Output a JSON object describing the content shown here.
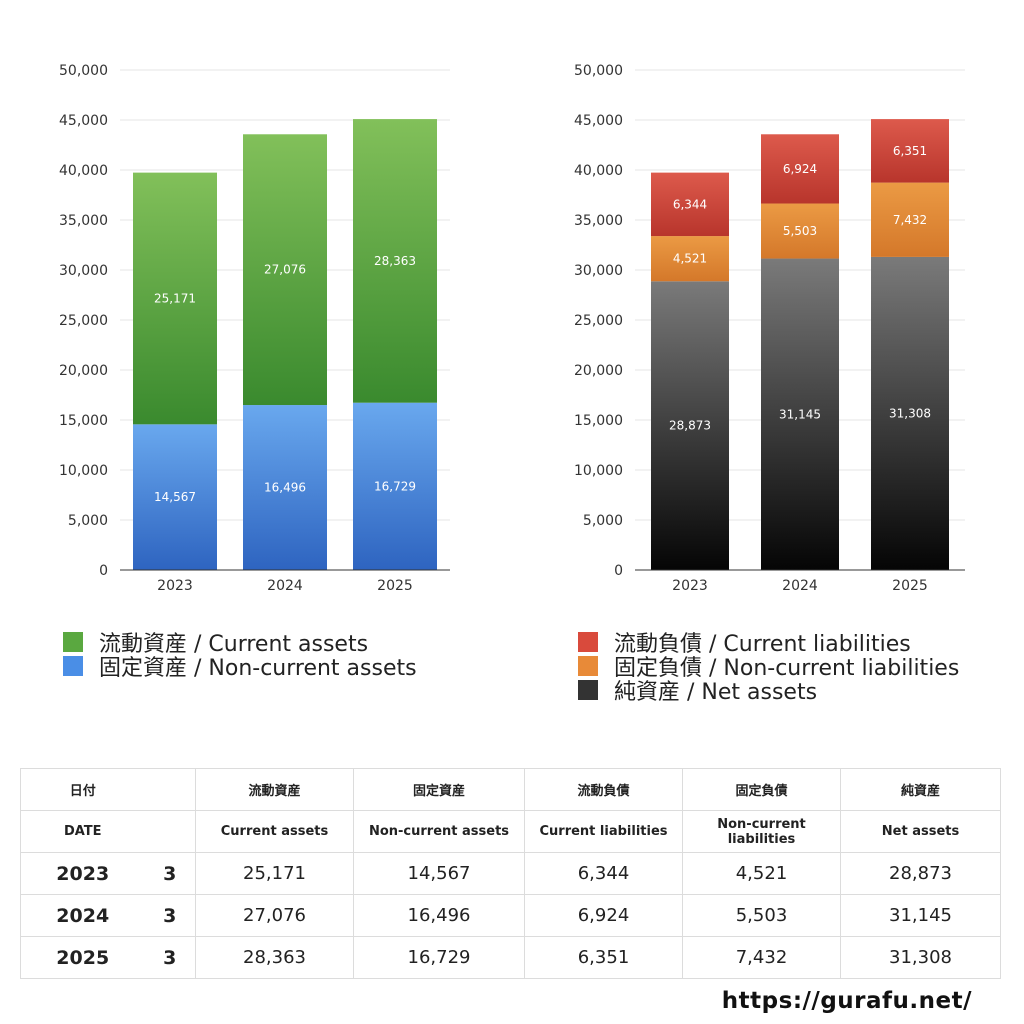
{
  "chart_data": [
    {
      "type": "bar",
      "stacked": true,
      "categories": [
        "2023",
        "2024",
        "2025"
      ],
      "ylim": [
        0,
        50000
      ],
      "ytick_step": 5000,
      "grid": true,
      "series": [
        {
          "name": "固定資産 / Non-current assets",
          "values": [
            14567,
            16496,
            16729
          ],
          "color_top": "#69a8ee",
          "color_bottom": "#2e64c0"
        },
        {
          "name": "流動資産 / Current assets",
          "values": [
            25171,
            27076,
            28363
          ],
          "color_top": "#82c05a",
          "color_bottom": "#3a8a2e"
        }
      ],
      "legend_order": [
        "流動資産 / Current assets",
        "固定資産 / Non-current assets"
      ],
      "legend_colors": [
        "#5aa840",
        "#4a8ee6"
      ]
    },
    {
      "type": "bar",
      "stacked": true,
      "categories": [
        "2023",
        "2024",
        "2025"
      ],
      "ylim": [
        0,
        50000
      ],
      "ytick_step": 5000,
      "grid": true,
      "series": [
        {
          "name": "純資産 / Net assets",
          "values": [
            28873,
            31145,
            31308
          ],
          "color_top": "#7a7a7a",
          "color_bottom": "#050505"
        },
        {
          "name": "固定負債 / Non-current liabilities",
          "values": [
            4521,
            5503,
            7432
          ],
          "color_top": "#eb9a44",
          "color_bottom": "#d4782a"
        },
        {
          "name": "流動負債 / Current liabilities",
          "values": [
            6344,
            6924,
            6351
          ],
          "color_top": "#dd5a4c",
          "color_bottom": "#b8352c"
        }
      ],
      "legend_order": [
        "流動負債 / Current liabilities",
        "固定負債 / Non-current liabilities",
        "純資産 / Net assets"
      ],
      "legend_colors": [
        "#d94a3c",
        "#e88a38",
        "#333333"
      ]
    }
  ],
  "table": {
    "header_jp": {
      "date": "日付",
      "cols": [
        "流動資産",
        "固定資産",
        "流動負債",
        "固定負債",
        "純資産"
      ]
    },
    "header_en": {
      "date": "DATE",
      "cols": [
        "Current assets",
        "Non-current assets",
        "Current liabilities",
        "Non-current liabilities",
        "Net assets"
      ]
    },
    "rows": [
      {
        "year": "2023",
        "month": "3",
        "values": [
          "25,171",
          "14,567",
          "6,344",
          "4,521",
          "28,873"
        ]
      },
      {
        "year": "2024",
        "month": "3",
        "values": [
          "27,076",
          "16,496",
          "6,924",
          "5,503",
          "31,145"
        ]
      },
      {
        "year": "2025",
        "month": "3",
        "values": [
          "28,363",
          "16,729",
          "6,351",
          "7,432",
          "31,308"
        ]
      }
    ]
  },
  "footer": {
    "url": "https://gurafu.net/"
  }
}
